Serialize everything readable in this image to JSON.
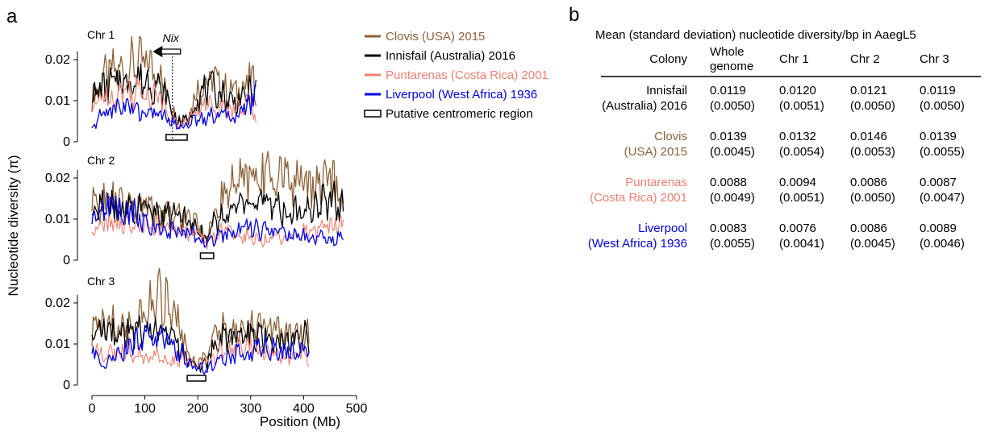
{
  "panel_a_letter": "a",
  "panel_b_letter": "b",
  "chart_data": {
    "type": "line",
    "xlabel": "Position (Mb)",
    "ylabel": "Nucleotide diversity (π)",
    "xlim": [
      0,
      500
    ],
    "xticks": [
      "0",
      "100",
      "200",
      "300",
      "400",
      "500"
    ],
    "ylim": [
      0,
      0.025
    ],
    "yticks": [
      "0",
      "0.01",
      "0.02"
    ],
    "legend_position": "top-right",
    "colors": {
      "Clovis": "#8c6239",
      "Innisfail": "#000000",
      "Puntarenas": "#f08070",
      "Liverpool": "#0000e6"
    },
    "legend": [
      {
        "key": "Clovis",
        "label": "Clovis (USA) 2015"
      },
      {
        "key": "Innisfail",
        "label": "Innisfail (Australia) 2016"
      },
      {
        "key": "Puntarenas",
        "label": "Puntarenas (Costa Rica) 2001"
      },
      {
        "key": "Liverpool",
        "label": "Liverpool (West Africa) 1936"
      },
      {
        "key": "centromere",
        "label": "Putative centromeric region"
      }
    ],
    "annotation": {
      "label": "Nix",
      "x": 152
    },
    "chromosomes": [
      {
        "name": "Chr 1",
        "length": 310,
        "centromere": [
          140,
          180
        ],
        "x": [
          0,
          20,
          40,
          60,
          80,
          100,
          120,
          140,
          160,
          180,
          200,
          220,
          240,
          260,
          280,
          300,
          310
        ],
        "series": [
          {
            "key": "Clovis",
            "values": [
              0.01,
              0.016,
              0.017,
              0.018,
              0.019,
              0.019,
              0.018,
              0.013,
              0.006,
              0.006,
              0.013,
              0.015,
              0.015,
              0.012,
              0.013,
              0.015,
              0.014
            ]
          },
          {
            "key": "Innisfail",
            "values": [
              0.011,
              0.013,
              0.014,
              0.015,
              0.015,
              0.015,
              0.014,
              0.011,
              0.005,
              0.005,
              0.011,
              0.013,
              0.012,
              0.01,
              0.01,
              0.012,
              0.012
            ]
          },
          {
            "key": "Puntarenas",
            "values": [
              0.007,
              0.012,
              0.011,
              0.013,
              0.012,
              0.012,
              0.012,
              0.009,
              0.004,
              0.005,
              0.008,
              0.009,
              0.009,
              0.008,
              0.008,
              0.01,
              0.005
            ]
          },
          {
            "key": "Liverpool",
            "values": [
              0.003,
              0.007,
              0.008,
              0.009,
              0.008,
              0.007,
              0.007,
              0.006,
              0.004,
              0.004,
              0.006,
              0.006,
              0.007,
              0.006,
              0.007,
              0.01,
              0.012
            ]
          }
        ]
      },
      {
        "name": "Chr 2",
        "length": 475,
        "centromere": [
          205,
          230
        ],
        "x": [
          0,
          25,
          50,
          75,
          100,
          125,
          150,
          175,
          200,
          215,
          230,
          250,
          275,
          300,
          325,
          350,
          375,
          400,
          425,
          450,
          475
        ],
        "series": [
          {
            "key": "Clovis",
            "values": [
              0.013,
              0.014,
              0.014,
              0.013,
              0.013,
              0.012,
              0.011,
              0.011,
              0.009,
              0.005,
              0.011,
              0.016,
              0.019,
              0.02,
              0.021,
              0.021,
              0.02,
              0.019,
              0.019,
              0.02,
              0.014
            ]
          },
          {
            "key": "Innisfail",
            "values": [
              0.012,
              0.013,
              0.013,
              0.012,
              0.012,
              0.011,
              0.011,
              0.01,
              0.009,
              0.005,
              0.009,
              0.011,
              0.013,
              0.014,
              0.014,
              0.013,
              0.012,
              0.012,
              0.013,
              0.015,
              0.013
            ]
          },
          {
            "key": "Puntarenas",
            "values": [
              0.007,
              0.009,
              0.009,
              0.009,
              0.008,
              0.008,
              0.008,
              0.007,
              0.007,
              0.004,
              0.006,
              0.007,
              0.006,
              0.006,
              0.005,
              0.006,
              0.006,
              0.007,
              0.007,
              0.008,
              0.01
            ]
          },
          {
            "key": "Liverpool",
            "values": [
              0.012,
              0.013,
              0.012,
              0.012,
              0.009,
              0.008,
              0.007,
              0.007,
              0.006,
              0.004,
              0.005,
              0.006,
              0.007,
              0.008,
              0.007,
              0.007,
              0.006,
              0.006,
              0.006,
              0.005,
              0.006
            ]
          }
        ]
      },
      {
        "name": "Chr 3",
        "length": 410,
        "centromere": [
          180,
          215
        ],
        "x": [
          0,
          25,
          50,
          75,
          100,
          125,
          150,
          175,
          195,
          215,
          235,
          260,
          285,
          310,
          335,
          360,
          385,
          410
        ],
        "series": [
          {
            "key": "Clovis",
            "values": [
              0.013,
              0.015,
              0.014,
              0.015,
              0.018,
              0.021,
              0.02,
              0.011,
              0.005,
              0.007,
              0.012,
              0.014,
              0.014,
              0.013,
              0.014,
              0.013,
              0.013,
              0.012
            ]
          },
          {
            "key": "Innisfail",
            "values": [
              0.012,
              0.013,
              0.012,
              0.013,
              0.012,
              0.013,
              0.012,
              0.008,
              0.004,
              0.005,
              0.01,
              0.012,
              0.012,
              0.012,
              0.012,
              0.012,
              0.011,
              0.012
            ]
          },
          {
            "key": "Puntarenas",
            "values": [
              0.01,
              0.007,
              0.008,
              0.009,
              0.007,
              0.007,
              0.006,
              0.007,
              0.004,
              0.005,
              0.008,
              0.009,
              0.01,
              0.009,
              0.008,
              0.007,
              0.008,
              0.007
            ]
          },
          {
            "key": "Liverpool",
            "values": [
              0.008,
              0.005,
              0.007,
              0.01,
              0.012,
              0.012,
              0.01,
              0.007,
              0.004,
              0.004,
              0.005,
              0.007,
              0.008,
              0.009,
              0.009,
              0.008,
              0.008,
              0.008
            ]
          }
        ]
      }
    ]
  },
  "table": {
    "title": "Mean (standard deviation) nucleotide diversity/bp in AaegL5",
    "headers": {
      "colony": "Colony",
      "whole_line1": "Whole",
      "whole_line2": "genome",
      "chr1": "Chr 1",
      "chr2": "Chr 2",
      "chr3": "Chr 3"
    },
    "rows": [
      {
        "key": "Innisfail",
        "name_line1": "Innisfail",
        "name_line2": "(Australia) 2016",
        "means": [
          "0.0119",
          "0.0120",
          "0.0121",
          "0.0119"
        ],
        "sds": [
          "(0.0050)",
          "(0.0051)",
          "(0.0050)",
          "(0.0050)"
        ]
      },
      {
        "key": "Clovis",
        "name_line1": "Clovis",
        "name_line2": "(USA) 2015",
        "means": [
          "0.0139",
          "0.0132",
          "0.0146",
          "0.0139"
        ],
        "sds": [
          "(0.0045)",
          "(0.0054)",
          "(0.0053)",
          "(0.0055)"
        ]
      },
      {
        "key": "Puntarenas",
        "name_line1": "Puntarenas",
        "name_line2": "(Costa Rica) 2001",
        "means": [
          "0.0088",
          "0.0094",
          "0.0086",
          "0.0087"
        ],
        "sds": [
          "(0.0049)",
          "(0.0051)",
          "(0.0050)",
          "(0.0047)"
        ]
      },
      {
        "key": "Liverpool",
        "name_line1": "Liverpool",
        "name_line2": "(West Africa) 1936",
        "means": [
          "0.0083",
          "0.0076",
          "0.0086",
          "0.0089"
        ],
        "sds": [
          "(0.0055)",
          "(0.0041)",
          "(0.0045)",
          "(0.0046)"
        ]
      }
    ]
  }
}
